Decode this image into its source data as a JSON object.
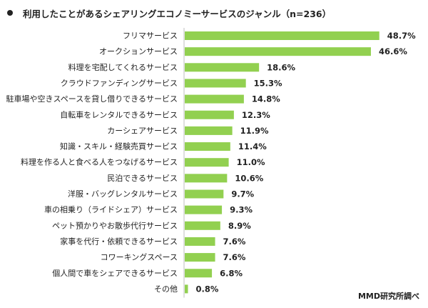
{
  "chart_data": {
    "type": "bar",
    "orientation": "horizontal",
    "title": "利用したことがあるシェアリングエコノミーサービスのジャンル（n=236）",
    "categories": [
      "フリマサービス",
      "オークションサービス",
      "料理を宅配してくれるサービス",
      "クラウドファンディングサービス",
      "駐車場や空きスペースを貸し借りできるサービス",
      "自転車をレンタルできるサービス",
      "カーシェアサービス",
      "知識・スキル・経験売買サービス",
      "料理を作る人と食べる人をつなげるサービス",
      "民泊できるサービス",
      "洋服・バッグレンタルサービス",
      "車の相乗り（ライドシェア）サービス",
      "ペット預かりやお散歩代行サービス",
      "家事を代行・依頼できるサービス",
      "コワーキングスペース",
      "個人間で車をシェアできるサービス",
      "その他"
    ],
    "values": [
      48.7,
      46.6,
      18.6,
      15.3,
      14.8,
      12.3,
      11.9,
      11.4,
      11.0,
      10.6,
      9.7,
      9.3,
      8.9,
      7.6,
      7.6,
      6.8,
      0.8
    ],
    "value_labels": [
      "48.7%",
      "46.6%",
      "18.6%",
      "15.3%",
      "14.8%",
      "12.3%",
      "11.9%",
      "11.4%",
      "11.0%",
      "10.6%",
      "9.7%",
      "9.3%",
      "8.9%",
      "7.6%",
      "7.6%",
      "6.8%",
      "0.8%"
    ],
    "xlim": [
      0,
      50
    ],
    "grid": false,
    "bar_color": "#92d050"
  },
  "source": "MMD研究所調べ"
}
